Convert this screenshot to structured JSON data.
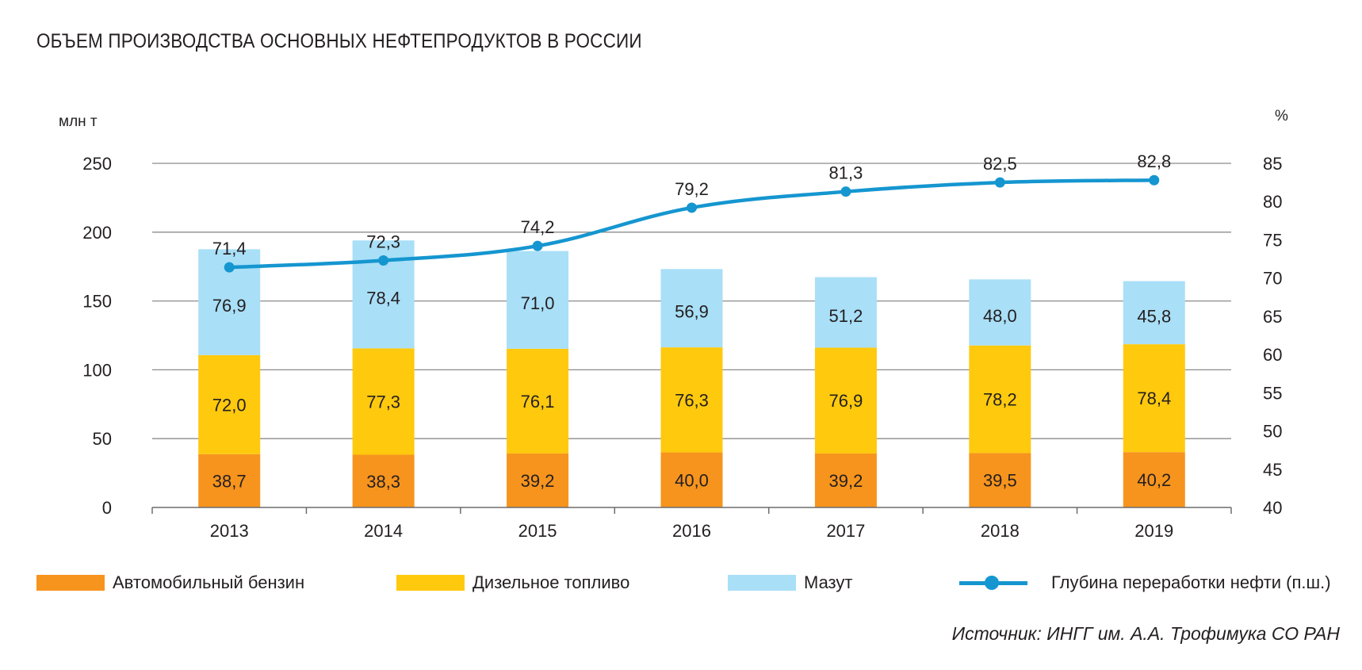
{
  "chart_data": {
    "type": "bar",
    "title": "ОБЪЕМ ПРОИЗВОДСТВА ОСНОВНЫХ НЕФТЕПРОДУКТОВ В РОССИИ",
    "categories": [
      "2013",
      "2014",
      "2015",
      "2016",
      "2017",
      "2018",
      "2019"
    ],
    "stacked": true,
    "ylabel": "млн т",
    "ylim": [
      0,
      250
    ],
    "yticks": [
      0,
      50,
      100,
      150,
      200,
      250
    ],
    "y2label": "%",
    "y2lim": [
      40,
      85
    ],
    "y2ticks": [
      40,
      45,
      50,
      55,
      60,
      65,
      70,
      75,
      80,
      85
    ],
    "grid": true,
    "legend_position": "bottom",
    "series": [
      {
        "name": "Автомобильный бензин",
        "type": "bar",
        "color": "#f7941d",
        "values": [
          38.7,
          38.3,
          39.2,
          40.0,
          39.2,
          39.5,
          40.2
        ],
        "labels": [
          "38,7",
          "38,3",
          "39,2",
          "40,0",
          "39,2",
          "39,5",
          "40,2"
        ]
      },
      {
        "name": "Дизельное топливо",
        "type": "bar",
        "color": "#ffc90e",
        "values": [
          72.0,
          77.3,
          76.1,
          76.3,
          76.9,
          78.2,
          78.4
        ],
        "labels": [
          "72,0",
          "77,3",
          "76,1",
          "76,3",
          "76,9",
          "78,2",
          "78,4"
        ]
      },
      {
        "name": "Мазут",
        "type": "bar",
        "color": "#a9dff7",
        "values": [
          76.9,
          78.4,
          71.0,
          56.9,
          51.2,
          48.0,
          45.8
        ],
        "labels": [
          "76,9",
          "78,4",
          "71,0",
          "56,9",
          "51,2",
          "48,0",
          "45,8"
        ]
      },
      {
        "name": "Глубина переработки нефти (п.ш.)",
        "type": "line",
        "axis": "right",
        "color": "#1596d0",
        "values": [
          71.4,
          72.3,
          74.2,
          79.2,
          81.3,
          82.5,
          82.8
        ],
        "labels": [
          "71,4",
          "72,3",
          "74,2",
          "79,2",
          "81,3",
          "82,5",
          "82,8"
        ]
      }
    ],
    "source": "Источник: ИНГГ им. А.А. Трофимука СО РАН"
  }
}
